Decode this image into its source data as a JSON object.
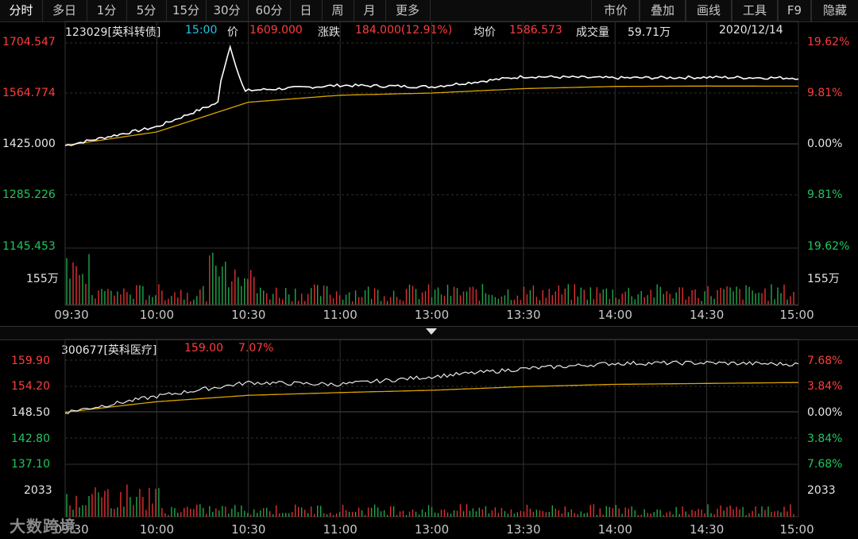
{
  "toolbar": {
    "items": [
      "分时",
      "多日",
      "1分",
      "5分",
      "15分",
      "30分",
      "60分",
      "日",
      "周",
      "月",
      "更多"
    ],
    "right_items": [
      "市价",
      "叠加",
      "画线",
      "工具",
      "F9",
      "隐藏"
    ]
  },
  "top": {
    "code": "123029[英科转债]",
    "time": "15:00",
    "price_label": "价",
    "price": "1609.000",
    "change_label": "涨跌",
    "change": "184.000(12.91%)",
    "avg_label": "均价",
    "avg": "1586.573",
    "vol_label": "成交量",
    "vol": "59.71万",
    "date": "2020/12/14",
    "y_left": [
      "1704.547",
      "1564.774",
      "1425.000",
      "1285.226",
      "1145.453"
    ],
    "y_right": [
      "19.62%",
      "9.81%",
      "0.00%",
      "9.81%",
      "19.62%"
    ],
    "vol_axis": "155万"
  },
  "bottom": {
    "code": "300677[英科医疗]",
    "price": "159.00",
    "pct": "7.07%",
    "y_left": [
      "159.90",
      "154.20",
      "148.50",
      "142.80",
      "137.10"
    ],
    "y_right": [
      "7.68%",
      "3.84%",
      "0.00%",
      "3.84%",
      "7.68%"
    ],
    "vol_axis": "2033"
  },
  "x_ticks": [
    "09:30",
    "10:00",
    "10:30",
    "11:00",
    "13:00",
    "13:30",
    "14:00",
    "14:30",
    "15:00"
  ],
  "watermark": "大数跨境",
  "colors": {
    "price_line": "#ffffff",
    "avg_line": "#d9a400",
    "up": "#e03030",
    "down": "#1fa64a",
    "grid": "#303030"
  },
  "chart_data": [
    {
      "type": "line",
      "title": "123029[英科转债]",
      "x": [
        "09:30",
        "10:00",
        "10:30",
        "11:00",
        "13:00",
        "13:30",
        "14:00",
        "14:30",
        "15:00"
      ],
      "series": [
        {
          "name": "价",
          "values": [
            1425.0,
            1476,
            1575,
            1589,
            1585,
            1613,
            1609,
            1611,
            1609
          ]
        },
        {
          "name": "均价",
          "values": [
            1425.0,
            1462,
            1543,
            1562,
            1568,
            1580,
            1586,
            1587,
            1586.573
          ]
        }
      ],
      "ylim": [
        1145.453,
        1704.547
      ],
      "peak": 1694,
      "volume_unit": "万"
    },
    {
      "type": "line",
      "title": "300677[英科医疗]",
      "x": [
        "09:30",
        "10:00",
        "10:30",
        "11:00",
        "13:00",
        "13:30",
        "14:00",
        "14:30",
        "15:00"
      ],
      "series": [
        {
          "name": "价",
          "values": [
            148.5,
            152.0,
            155.0,
            154.6,
            156.3,
            158.0,
            159.2,
            159.3,
            159.0
          ]
        },
        {
          "name": "均价",
          "values": [
            148.5,
            150.8,
            152.2,
            152.8,
            153.3,
            154.1,
            154.6,
            154.8,
            155.0
          ]
        }
      ],
      "ylim": [
        137.1,
        159.9
      ]
    }
  ]
}
